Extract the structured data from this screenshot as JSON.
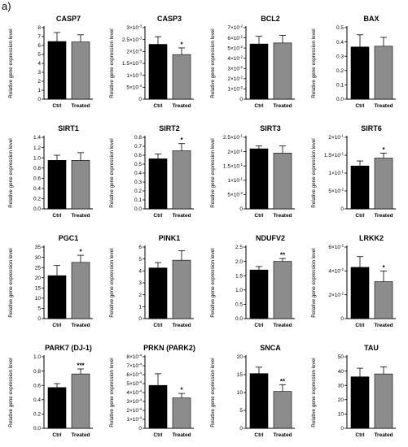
{
  "figure_label": "a)",
  "y_axis_label": "Relative gene expression level",
  "colors": {
    "ctrl": "#000000",
    "treated": "#8c8c8c",
    "axis": "#000000"
  },
  "chart_data": [
    {
      "type": "bar",
      "title": "CASP7",
      "categories": [
        "Ctrl",
        "Treated"
      ],
      "values": [
        6.45,
        6.4
      ],
      "errors": [
        1.0,
        0.8
      ],
      "ylim": [
        0,
        8
      ],
      "ticks": [
        {
          "v": 0,
          "t": "0"
        },
        {
          "v": 1,
          "t": "1"
        },
        {
          "v": 2,
          "t": "2"
        },
        {
          "v": 3,
          "t": "3"
        },
        {
          "v": 4,
          "t": "4"
        },
        {
          "v": 5,
          "t": "5"
        },
        {
          "v": 6,
          "t": "6"
        },
        {
          "v": 7,
          "t": "7"
        },
        {
          "v": 8,
          "t": "8"
        }
      ],
      "significance": ""
    },
    {
      "type": "bar",
      "title": "CASP3",
      "categories": [
        "Ctrl",
        "Treated"
      ],
      "values": [
        0.0023,
        0.00187
      ],
      "errors": [
        0.00032,
        0.00028
      ],
      "ylim": [
        0,
        0.003
      ],
      "ticks": [
        {
          "v": 0,
          "t": "0"
        },
        {
          "v": 0.0005,
          "m": "5",
          "e": "-4"
        },
        {
          "v": 0.001,
          "m": "1",
          "e": "-3"
        },
        {
          "v": 0.0015,
          "m": "1.5",
          "e": "-3"
        },
        {
          "v": 0.002,
          "m": "2",
          "e": "-3"
        },
        {
          "v": 0.0025,
          "m": "2.5",
          "e": "-3"
        },
        {
          "v": 0.003,
          "m": "3",
          "e": "-3"
        }
      ],
      "significance": "*"
    },
    {
      "type": "bar",
      "title": "BCL2",
      "categories": [
        "Ctrl",
        "Treated"
      ],
      "values": [
        0.054,
        0.055
      ],
      "errors": [
        0.0075,
        0.0075
      ],
      "ylim": [
        0,
        0.07
      ],
      "ticks": [
        {
          "v": 0,
          "t": "0"
        },
        {
          "v": 0.01,
          "m": "1",
          "e": "-2"
        },
        {
          "v": 0.02,
          "m": "2",
          "e": "-2"
        },
        {
          "v": 0.03,
          "m": "3",
          "e": "-2"
        },
        {
          "v": 0.04,
          "m": "4",
          "e": "-2"
        },
        {
          "v": 0.05,
          "m": "5",
          "e": "-2"
        },
        {
          "v": 0.06,
          "m": "6",
          "e": "-2"
        },
        {
          "v": 0.07,
          "m": "7",
          "e": "-2"
        }
      ],
      "significance": ""
    },
    {
      "type": "bar",
      "title": "BAX",
      "categories": [
        "Ctrl",
        "Treated"
      ],
      "values": [
        0.365,
        0.37
      ],
      "errors": [
        0.085,
        0.062
      ],
      "ylim": [
        0,
        0.5
      ],
      "ticks": [
        {
          "v": 0,
          "t": "0.0"
        },
        {
          "v": 0.1,
          "t": "0.1"
        },
        {
          "v": 0.2,
          "t": "0.2"
        },
        {
          "v": 0.3,
          "t": "0.3"
        },
        {
          "v": 0.4,
          "t": "0.4"
        },
        {
          "v": 0.5,
          "t": "0.5"
        }
      ],
      "significance": ""
    },
    {
      "type": "bar",
      "title": "SIRT1",
      "categories": [
        "Ctrl",
        "Treated"
      ],
      "values": [
        0.95,
        0.95
      ],
      "errors": [
        0.1,
        0.15
      ],
      "ylim": [
        0,
        1.4
      ],
      "ticks": [
        {
          "v": 0,
          "t": "0.0"
        },
        {
          "v": 0.2,
          "t": "0.2"
        },
        {
          "v": 0.4,
          "t": "0.4"
        },
        {
          "v": 0.6,
          "t": "0.6"
        },
        {
          "v": 0.8,
          "t": "0.8"
        },
        {
          "v": 1.0,
          "t": "1.0"
        },
        {
          "v": 1.2,
          "t": "1.2"
        },
        {
          "v": 1.4,
          "t": "1.4"
        }
      ],
      "significance": ""
    },
    {
      "type": "bar",
      "title": "SIRT2",
      "categories": [
        "Ctrl",
        "Treated"
      ],
      "values": [
        0.56,
        0.65
      ],
      "errors": [
        0.055,
        0.08
      ],
      "ylim": [
        0,
        0.8
      ],
      "ticks": [
        {
          "v": 0,
          "t": "0.0"
        },
        {
          "v": 0.1,
          "t": "0.1"
        },
        {
          "v": 0.2,
          "t": "0.2"
        },
        {
          "v": 0.3,
          "t": "0.3"
        },
        {
          "v": 0.4,
          "t": "0.4"
        },
        {
          "v": 0.5,
          "t": "0.5"
        },
        {
          "v": 0.6,
          "t": "0.6"
        },
        {
          "v": 0.7,
          "t": "0.7"
        },
        {
          "v": 0.8,
          "t": "0.8"
        }
      ],
      "significance": "*"
    },
    {
      "type": "bar",
      "title": "SIRT3",
      "categories": [
        "Ctrl",
        "Treated"
      ],
      "values": [
        0.21,
        0.195
      ],
      "errors": [
        0.01,
        0.025
      ],
      "ylim": [
        0,
        0.25
      ],
      "ticks": [
        {
          "v": 0,
          "t": "0"
        },
        {
          "v": 0.05,
          "m": "5",
          "e": "-2"
        },
        {
          "v": 0.1,
          "m": "1",
          "e": "-1"
        },
        {
          "v": 0.15,
          "m": "1.5",
          "e": "-1"
        },
        {
          "v": 0.2,
          "m": "2",
          "e": "-1"
        },
        {
          "v": 0.25,
          "m": "2.5",
          "e": "-1"
        }
      ],
      "significance": ""
    },
    {
      "type": "bar",
      "title": "SIRT6",
      "categories": [
        "Ctrl",
        "Treated"
      ],
      "values": [
        0.12,
        0.142
      ],
      "errors": [
        0.014,
        0.014
      ],
      "ylim": [
        0,
        0.2
      ],
      "ticks": [
        {
          "v": 0,
          "t": "0"
        },
        {
          "v": 0.05,
          "m": "5",
          "e": "-2"
        },
        {
          "v": 0.1,
          "m": "1",
          "e": "-1"
        },
        {
          "v": 0.15,
          "m": "1.5",
          "e": "-1"
        },
        {
          "v": 0.2,
          "m": "2",
          "e": "-1"
        }
      ],
      "significance": "*"
    },
    {
      "type": "bar",
      "title": "PGC1",
      "categories": [
        "Ctrl",
        "Treated"
      ],
      "values": [
        21,
        27.5
      ],
      "errors": [
        5,
        3.5
      ],
      "ylim": [
        0,
        35
      ],
      "ticks": [
        {
          "v": 0,
          "t": "0"
        },
        {
          "v": 5,
          "t": "5"
        },
        {
          "v": 10,
          "t": "10"
        },
        {
          "v": 15,
          "t": "15"
        },
        {
          "v": 20,
          "t": "20"
        },
        {
          "v": 25,
          "t": "25"
        },
        {
          "v": 30,
          "t": "30"
        },
        {
          "v": 35,
          "t": "35"
        }
      ],
      "significance": "*"
    },
    {
      "type": "bar",
      "title": "PINK1",
      "categories": [
        "Ctrl",
        "Treated"
      ],
      "values": [
        4.25,
        4.9
      ],
      "errors": [
        0.45,
        0.8
      ],
      "ylim": [
        0,
        6
      ],
      "ticks": [
        {
          "v": 0,
          "t": "0"
        },
        {
          "v": 1,
          "t": "1"
        },
        {
          "v": 2,
          "t": "2"
        },
        {
          "v": 3,
          "t": "3"
        },
        {
          "v": 4,
          "t": "4"
        },
        {
          "v": 5,
          "t": "5"
        },
        {
          "v": 6,
          "t": "6"
        }
      ],
      "significance": ""
    },
    {
      "type": "bar",
      "title": "NDUFV2",
      "categories": [
        "Ctrl",
        "Treated"
      ],
      "values": [
        1.7,
        2.0
      ],
      "errors": [
        0.12,
        0.1
      ],
      "ylim": [
        0,
        2.5
      ],
      "ticks": [
        {
          "v": 0,
          "t": "0.0"
        },
        {
          "v": 0.5,
          "t": "0.5"
        },
        {
          "v": 1.0,
          "t": "1.0"
        },
        {
          "v": 1.5,
          "t": "1.5"
        },
        {
          "v": 2.0,
          "t": "2.0"
        },
        {
          "v": 2.5,
          "t": "2.5"
        }
      ],
      "significance": "**"
    },
    {
      "type": "bar",
      "title": "LRKK2",
      "categories": [
        "Ctrl",
        "Treated"
      ],
      "values": [
        0.043,
        0.031
      ],
      "errors": [
        0.009,
        0.009
      ],
      "ylim": [
        0,
        0.06
      ],
      "ticks": [
        {
          "v": 0,
          "t": "0"
        },
        {
          "v": 0.02,
          "m": "2",
          "e": "-2"
        },
        {
          "v": 0.04,
          "m": "4",
          "e": "-2"
        },
        {
          "v": 0.06,
          "m": "6",
          "e": "-2"
        }
      ],
      "significance": "*"
    },
    {
      "type": "bar",
      "title": "PARK7 (DJ-1)",
      "categories": [
        "Ctrl",
        "Treated"
      ],
      "values": [
        0.57,
        0.76
      ],
      "errors": [
        0.055,
        0.07
      ],
      "ylim": [
        0,
        1.0
      ],
      "ticks": [
        {
          "v": 0,
          "t": "0.0"
        },
        {
          "v": 0.2,
          "t": "0.2"
        },
        {
          "v": 0.4,
          "t": "0.4"
        },
        {
          "v": 0.6,
          "t": "0.6"
        },
        {
          "v": 0.8,
          "t": "0.8"
        },
        {
          "v": 1.0,
          "t": "1.0"
        }
      ],
      "significance": "***"
    },
    {
      "type": "bar",
      "title": "PRKN (PARK2)",
      "categories": [
        "Ctrl",
        "Treated"
      ],
      "values": [
        0.00048,
        0.00034
      ],
      "errors": [
        0.00013,
        5e-05
      ],
      "ylim": [
        0,
        0.0008
      ],
      "ticks": [
        {
          "v": 0,
          "t": "0"
        },
        {
          "v": 0.0001,
          "m": "1",
          "e": "-4"
        },
        {
          "v": 0.0002,
          "m": "2",
          "e": "-4"
        },
        {
          "v": 0.0003,
          "m": "3",
          "e": "-4"
        },
        {
          "v": 0.0004,
          "m": "4",
          "e": "-4"
        },
        {
          "v": 0.0005,
          "m": "5",
          "e": "-4"
        },
        {
          "v": 0.0006,
          "m": "6",
          "e": "-4"
        },
        {
          "v": 0.0007,
          "m": "7",
          "e": "-4"
        },
        {
          "v": 0.0008,
          "m": "8",
          "e": "-4"
        }
      ],
      "significance": "*"
    },
    {
      "type": "bar",
      "title": "SNCA",
      "categories": [
        "Ctrl",
        "Treated"
      ],
      "values": [
        15.3,
        10.3
      ],
      "errors": [
        1.8,
        1.9
      ],
      "ylim": [
        0,
        20
      ],
      "ticks": [
        {
          "v": 0,
          "t": "0"
        },
        {
          "v": 5,
          "t": "5"
        },
        {
          "v": 10,
          "t": "10"
        },
        {
          "v": 15,
          "t": "15"
        },
        {
          "v": 20,
          "t": "20"
        }
      ],
      "significance": "**"
    },
    {
      "type": "bar",
      "title": "TAU",
      "categories": [
        "Ctrl",
        "Treated"
      ],
      "values": [
        36,
        38
      ],
      "errors": [
        6,
        5
      ],
      "ylim": [
        0,
        50
      ],
      "ticks": [
        {
          "v": 0,
          "t": "0"
        },
        {
          "v": 10,
          "t": "10"
        },
        {
          "v": 20,
          "t": "20"
        },
        {
          "v": 30,
          "t": "30"
        },
        {
          "v": 40,
          "t": "40"
        },
        {
          "v": 50,
          "t": "50"
        }
      ],
      "significance": ""
    }
  ]
}
